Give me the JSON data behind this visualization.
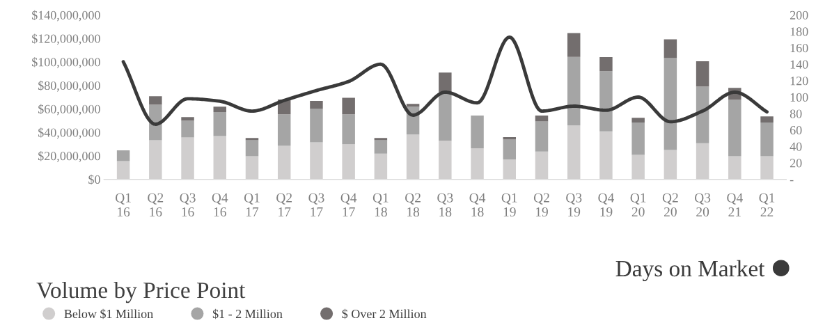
{
  "chart_data": {
    "type": "bar",
    "stacked": true,
    "legend_title": "Volume by Price Point",
    "legend": "bottom",
    "categories": [
      "Q1\n16",
      "Q2\n16",
      "Q3\n16",
      "Q4\n16",
      "Q1\n17",
      "Q2\n17",
      "Q3\n17",
      "Q4\n17",
      "Q1\n18",
      "Q2\n18",
      "Q3\n18",
      "Q4\n18",
      "Q1\n19",
      "Q2\n19",
      "Q3\n19",
      "Q4\n19",
      "Q1\n20",
      "Q2\n20",
      "Q3\n20",
      "Q4\n21",
      "Q1\n22"
    ],
    "series": [
      {
        "name": "Below $1 Million",
        "color": "#d0cece",
        "values": [
          15500000,
          33300000,
          35600000,
          36800000,
          19600000,
          28500000,
          31500000,
          29900000,
          21900000,
          38200000,
          32800000,
          26400000,
          17000000,
          23600000,
          45800000,
          40800000,
          20800000,
          25000000,
          30700000,
          19600000,
          19600000
        ]
      },
      {
        "name": "$1 - 2 Million",
        "color": "#a5a5a5",
        "values": [
          9200000,
          30400000,
          14400000,
          20500000,
          13700000,
          26800000,
          28500000,
          25400000,
          11400000,
          23700000,
          41600000,
          27900000,
          16800000,
          25700000,
          58500000,
          51300000,
          27600000,
          78200000,
          48400000,
          48200000,
          28800000
        ]
      },
      {
        "name": "$ Over 2 Million",
        "color": "#736e6e",
        "values": [
          0,
          7100000,
          3000000,
          4600000,
          1900000,
          12700000,
          6700000,
          14100000,
          1900000,
          2300000,
          16500000,
          0,
          2100000,
          5000000,
          20300000,
          12000000,
          4000000,
          16000000,
          21500000,
          10100000,
          5200000
        ]
      },
      {
        "name": "Days on Market",
        "type": "line",
        "axis": "y2",
        "color": "#3a3a3a",
        "values": [
          143,
          67,
          98,
          95,
          83,
          96,
          108,
          119,
          140,
          78,
          106,
          93,
          173,
          83,
          89,
          84,
          100,
          70,
          83,
          106,
          82
        ]
      }
    ],
    "ylim": [
      0,
      140000000
    ],
    "yticks": [
      {
        "value": 0,
        "label": "$0"
      },
      {
        "value": 20000000,
        "label": "$20,000,000"
      },
      {
        "value": 40000000,
        "label": "$40,000,000"
      },
      {
        "value": 60000000,
        "label": "$60,000,000"
      },
      {
        "value": 80000000,
        "label": "$80,000,000"
      },
      {
        "value": 100000000,
        "label": "$100,000,000"
      },
      {
        "value": 120000000,
        "label": "$120,000,000"
      },
      {
        "value": 140000000,
        "label": "$140,000,000"
      }
    ],
    "y2lim": [
      0,
      200
    ],
    "y2ticks": [
      {
        "value": 0,
        "label": "-"
      },
      20,
      40,
      60,
      80,
      100,
      120,
      140,
      160,
      180,
      200
    ],
    "grid": false
  }
}
